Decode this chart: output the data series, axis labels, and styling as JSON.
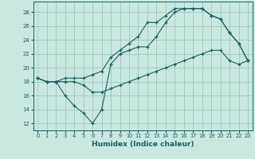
{
  "background_color": "#c8e8e0",
  "grid_color": "#a0c8c0",
  "line_color": "#1a6060",
  "marker": "+",
  "xlabel": "Humidex (Indice chaleur)",
  "xlim": [
    -0.5,
    23.5
  ],
  "ylim": [
    11,
    29.5
  ],
  "yticks": [
    12,
    14,
    16,
    18,
    20,
    22,
    24,
    26,
    28
  ],
  "xticks": [
    0,
    1,
    2,
    3,
    4,
    5,
    6,
    7,
    8,
    9,
    10,
    11,
    12,
    13,
    14,
    15,
    16,
    17,
    18,
    19,
    20,
    21,
    22,
    23
  ],
  "line1_x": [
    0,
    1,
    2,
    3,
    4,
    5,
    6,
    7,
    8,
    9,
    10,
    11,
    12,
    13,
    14,
    15,
    16,
    17,
    18,
    19,
    20,
    21,
    22,
    23
  ],
  "line1_y": [
    18.5,
    18.0,
    18.0,
    18.5,
    18.5,
    18.5,
    19.0,
    19.5,
    21.5,
    22.5,
    23.5,
    24.5,
    26.5,
    26.5,
    27.5,
    28.5,
    28.5,
    28.5,
    28.5,
    27.5,
    27.0,
    25.0,
    23.5,
    21.0
  ],
  "line2_x": [
    0,
    1,
    2,
    3,
    4,
    5,
    6,
    7,
    8,
    9,
    10,
    11,
    12,
    13,
    14,
    15,
    16,
    17,
    18,
    19,
    20,
    21,
    22,
    23
  ],
  "line2_y": [
    18.5,
    18.0,
    18.0,
    16.0,
    14.5,
    13.5,
    12.0,
    14.0,
    20.5,
    22.0,
    22.5,
    23.0,
    23.0,
    24.5,
    26.5,
    28.0,
    28.5,
    28.5,
    28.5,
    27.5,
    27.0,
    25.0,
    23.5,
    21.0
  ],
  "line3_x": [
    0,
    1,
    2,
    3,
    4,
    5,
    6,
    7,
    8,
    9,
    10,
    11,
    12,
    13,
    14,
    15,
    16,
    17,
    18,
    19,
    20,
    21,
    22,
    23
  ],
  "line3_y": [
    18.5,
    18.0,
    18.0,
    18.0,
    18.0,
    17.5,
    16.5,
    16.5,
    17.0,
    17.5,
    18.0,
    18.5,
    19.0,
    19.5,
    20.0,
    20.5,
    21.0,
    21.5,
    22.0,
    22.5,
    22.5,
    21.0,
    20.5,
    21.0
  ]
}
